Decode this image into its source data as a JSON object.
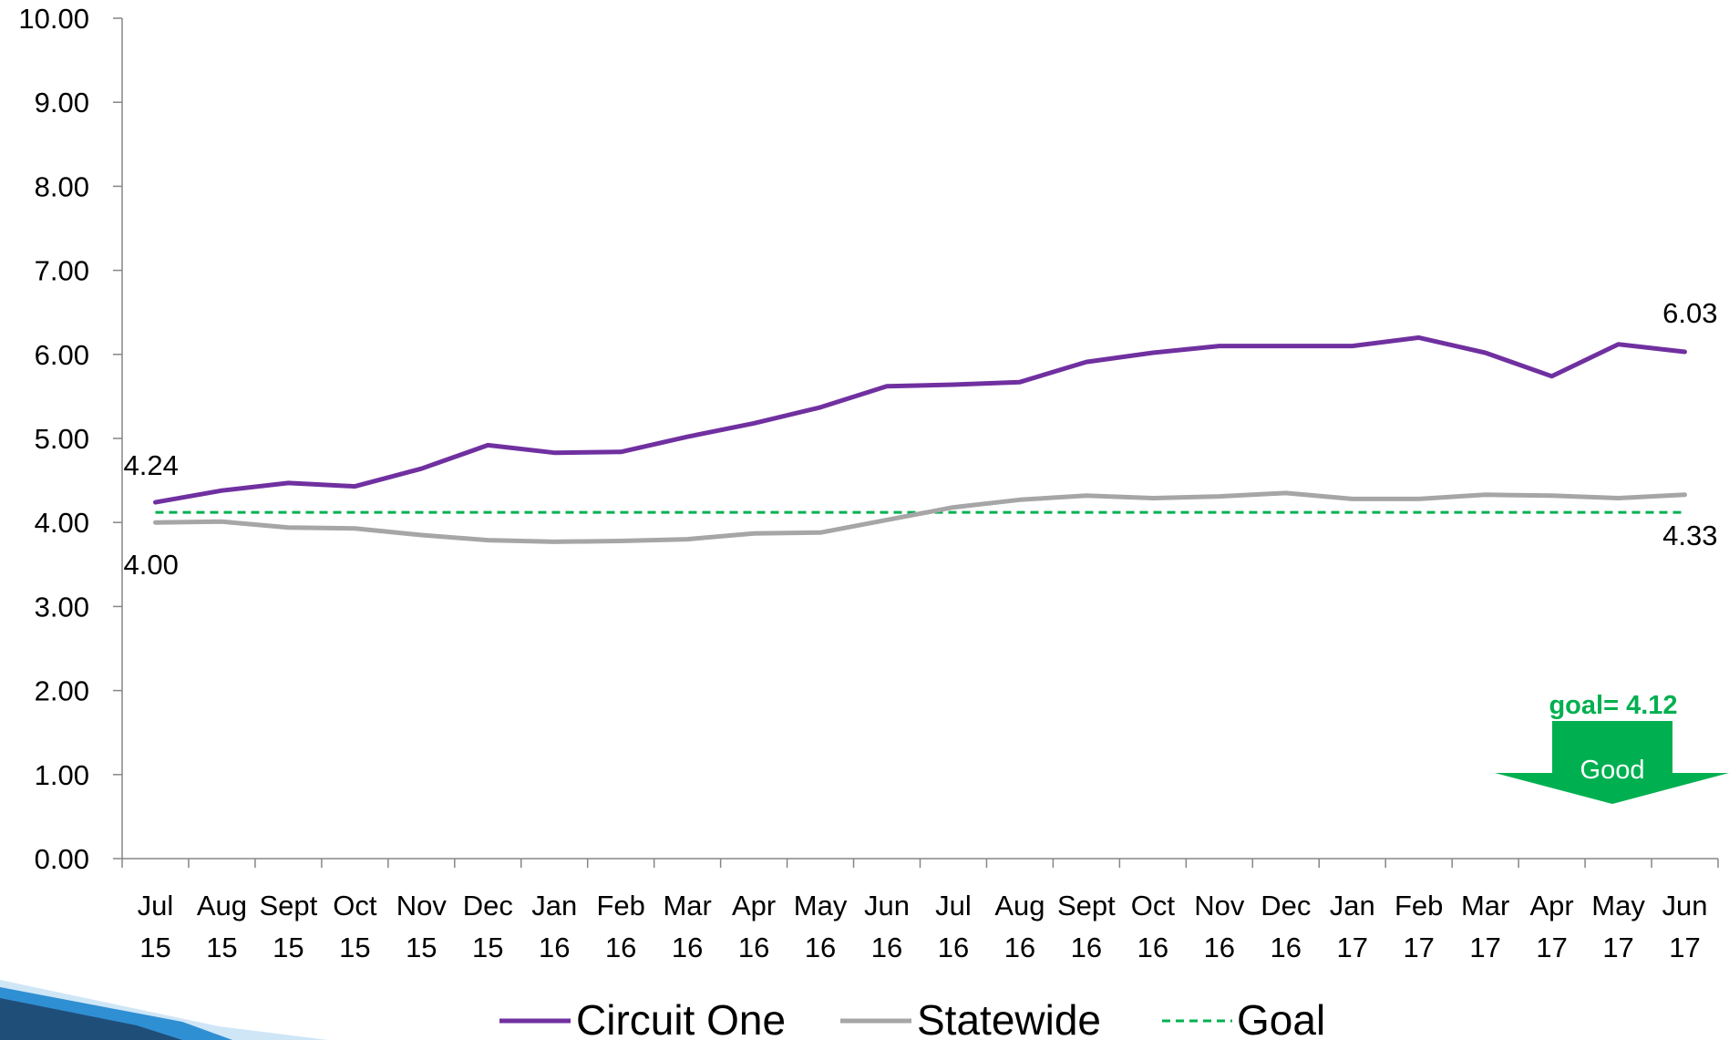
{
  "chart_data": {
    "type": "line",
    "ylim": [
      0,
      10
    ],
    "yticks": [
      "0.00",
      "1.00",
      "2.00",
      "3.00",
      "4.00",
      "5.00",
      "6.00",
      "7.00",
      "8.00",
      "9.00",
      "10.00"
    ],
    "categories": [
      [
        "Jul",
        "15"
      ],
      [
        "Aug",
        "15"
      ],
      [
        "Sept",
        "15"
      ],
      [
        "Oct",
        "15"
      ],
      [
        "Nov",
        "15"
      ],
      [
        "Dec",
        "15"
      ],
      [
        "Jan",
        "16"
      ],
      [
        "Feb",
        "16"
      ],
      [
        "Mar",
        "16"
      ],
      [
        "Apr",
        "16"
      ],
      [
        "May",
        "16"
      ],
      [
        "Jun",
        "16"
      ],
      [
        "Jul",
        "16"
      ],
      [
        "Aug",
        "16"
      ],
      [
        "Sept",
        "16"
      ],
      [
        "Oct",
        "16"
      ],
      [
        "Nov",
        "16"
      ],
      [
        "Dec",
        "16"
      ],
      [
        "Jan",
        "17"
      ],
      [
        "Feb",
        "17"
      ],
      [
        "Mar",
        "17"
      ],
      [
        "Apr",
        "17"
      ],
      [
        "May",
        "17"
      ],
      [
        "Jun",
        "17"
      ]
    ],
    "series": [
      {
        "name": "Circuit One",
        "color": "#7030A0",
        "values": [
          4.24,
          4.38,
          4.47,
          4.43,
          4.64,
          4.92,
          4.83,
          4.84,
          5.02,
          5.18,
          5.37,
          5.62,
          5.64,
          5.67,
          5.91,
          6.02,
          6.1,
          6.1,
          6.1,
          6.2,
          6.02,
          5.74,
          6.12,
          6.03
        ],
        "first_label": "4.24",
        "last_label": "6.03"
      },
      {
        "name": "Statewide",
        "color": "#A6A6A6",
        "values": [
          4.0,
          4.01,
          3.94,
          3.93,
          3.85,
          3.79,
          3.77,
          3.78,
          3.8,
          3.87,
          3.88,
          4.03,
          4.18,
          4.27,
          4.32,
          4.29,
          4.31,
          4.35,
          4.28,
          4.28,
          4.33,
          4.32,
          4.29,
          4.33
        ],
        "first_label": "4.00",
        "last_label": "4.33"
      }
    ],
    "goal": {
      "name": "Goal",
      "value": 4.12,
      "color": "#00B050",
      "label": "goal= 4.12"
    },
    "good_arrow": {
      "label": "Good",
      "color": "#00B050"
    },
    "legend_position": "bottom",
    "grid": false
  }
}
